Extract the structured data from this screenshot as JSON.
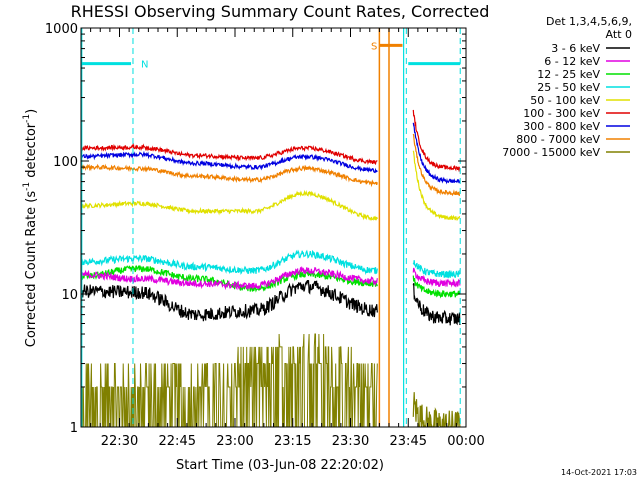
{
  "chart_data": {
    "type": "line",
    "title": "RHESSI Observing Summary Count Rates, Corrected",
    "xlabel": "Start Time (03-Jun-08 22:20:02)",
    "ylabel_main": "Corrected Count Rate (s",
    "ylabel_sup1": "-1",
    "ylabel_mid": " detector",
    "ylabel_sup2": "-1",
    "ylabel_end": ")",
    "yscale": "log",
    "ylim": [
      1,
      1000
    ],
    "xlim_min": [
      20,
      120
    ],
    "yticks": [
      {
        "value": 1,
        "label": "1"
      },
      {
        "value": 10,
        "label": "10"
      },
      {
        "value": 100,
        "label": "100"
      },
      {
        "value": 1000,
        "label": "1000"
      }
    ],
    "xticks": [
      {
        "min": 30,
        "label": "22:30"
      },
      {
        "min": 45,
        "label": "22:45"
      },
      {
        "min": 60,
        "label": "23:00"
      },
      {
        "min": 75,
        "label": "23:15"
      },
      {
        "min": 90,
        "label": "23:30"
      },
      {
        "min": 105,
        "label": "23:45"
      },
      {
        "min": 120,
        "label": "00:00"
      }
    ],
    "legend_placement": "right",
    "legend_header": [
      "Det 1,3,4,5,6,9,",
      "Att 0"
    ],
    "series": [
      {
        "name": "3 - 6 keV",
        "color": "#000000",
        "pre": [
          10.5,
          10.3,
          7,
          7.5,
          11.5,
          7.5
        ],
        "post": [
          11,
          6.5
        ]
      },
      {
        "name": "6 - 12 keV",
        "color": "#e000e0",
        "pre": [
          14,
          13,
          12,
          11.5,
          15,
          12.5
        ],
        "post": [
          15,
          12
        ]
      },
      {
        "name": "12 - 25 keV",
        "color": "#00e000",
        "pre": [
          13.5,
          15.5,
          13,
          11,
          14,
          12
        ],
        "post": [
          13,
          10
        ]
      },
      {
        "name": "25 - 50 keV",
        "color": "#00e0e0",
        "pre": [
          17.5,
          18.5,
          16,
          15,
          20,
          15
        ],
        "post": [
          18,
          14
        ]
      },
      {
        "name": "50 - 100 keV",
        "color": "#e0e000",
        "pre": [
          46,
          48,
          42,
          42,
          57,
          37
        ],
        "post": [
          120,
          37
        ]
      },
      {
        "name": "100 - 300 keV",
        "color": "#e00000",
        "pre": [
          125,
          127,
          110,
          105,
          125,
          98
        ],
        "post": [
          240,
          88
        ]
      },
      {
        "name": "300 - 800 keV",
        "color": "#0000e0",
        "pre": [
          108,
          112,
          96,
          90,
          108,
          85
        ],
        "post": [
          200,
          70
        ]
      },
      {
        "name": "800 - 7000 keV",
        "color": "#f08000",
        "pre": [
          90,
          88,
          77,
          72,
          88,
          68
        ],
        "post": [
          160,
          57
        ]
      },
      {
        "name": "7000 - 15000 keV",
        "color": "#808000",
        "pre": [
          2,
          2,
          2,
          3,
          4,
          2
        ],
        "post": [
          1.5,
          1
        ]
      }
    ],
    "flags": [
      {
        "label": "N",
        "color": "#00e0e0",
        "start_min": 20,
        "end_min": 33,
        "level": 540
      },
      {
        "label": "S",
        "color": "#f08000",
        "start_min": 97.5,
        "end_min": 103.5,
        "level": 740
      },
      {
        "label": "",
        "color": "#00e0e0",
        "start_min": 105,
        "end_min": 118.5,
        "level": 540
      }
    ],
    "vlines_dashed_min": [
      33.5,
      104.5,
      118.5
    ],
    "vlines_solid_cyan_min": [
      20.2,
      103.8
    ],
    "orange_gap_min": [
      97.5,
      100
    ],
    "footer_date": "14-Oct-2021 17:03"
  }
}
